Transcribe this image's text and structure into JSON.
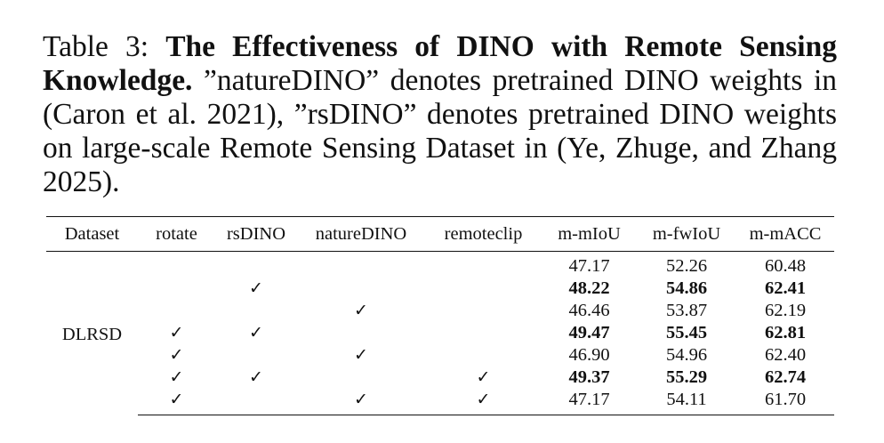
{
  "caption": {
    "label": "Table 3:",
    "title": "The Effectiveness of DINO with Remote Sens­ing Knowledge.",
    "body": "”natureDINO” denotes pretrained DINO weights in (Caron et al. 2021), ”rsDINO” denotes pretrained DINO weights on large-scale Remote Sensing Dataset in (Ye, Zhuge, and Zhang 2025)."
  },
  "table": {
    "headers": [
      "Dataset",
      "rotate",
      "rsDINO",
      "natureDINO",
      "remoteclip",
      "m-mIoU",
      "m-fwIoU",
      "m-mACC"
    ],
    "dataset": "DLRSD",
    "check_symbol": "✓",
    "rows": [
      {
        "rotate": "",
        "rsDINO": "",
        "natureDINO": "",
        "remoteclip": "",
        "mIoU": "47.17",
        "fwIoU": "52.26",
        "mACC": "60.48",
        "bold": false
      },
      {
        "rotate": "",
        "rsDINO": "✓",
        "natureDINO": "",
        "remoteclip": "",
        "mIoU": "48.22",
        "fwIoU": "54.86",
        "mACC": "62.41",
        "bold": true
      },
      {
        "rotate": "",
        "rsDINO": "",
        "natureDINO": "✓",
        "remoteclip": "",
        "mIoU": "46.46",
        "fwIoU": "53.87",
        "mACC": "62.19",
        "bold": false
      },
      {
        "rotate": "✓",
        "rsDINO": "✓",
        "natureDINO": "",
        "remoteclip": "",
        "mIoU": "49.47",
        "fwIoU": "55.45",
        "mACC": "62.81",
        "bold": true
      },
      {
        "rotate": "✓",
        "rsDINO": "",
        "natureDINO": "✓",
        "remoteclip": "",
        "mIoU": "46.90",
        "fwIoU": "54.96",
        "mACC": "62.40",
        "bold": false
      },
      {
        "rotate": "✓",
        "rsDINO": "✓",
        "natureDINO": "",
        "remoteclip": "✓",
        "mIoU": "49.37",
        "fwIoU": "55.29",
        "mACC": "62.74",
        "bold": true
      },
      {
        "rotate": "✓",
        "rsDINO": "",
        "natureDINO": "✓",
        "remoteclip": "✓",
        "mIoU": "47.17",
        "fwIoU": "54.11",
        "mACC": "61.70",
        "bold": false
      }
    ]
  }
}
